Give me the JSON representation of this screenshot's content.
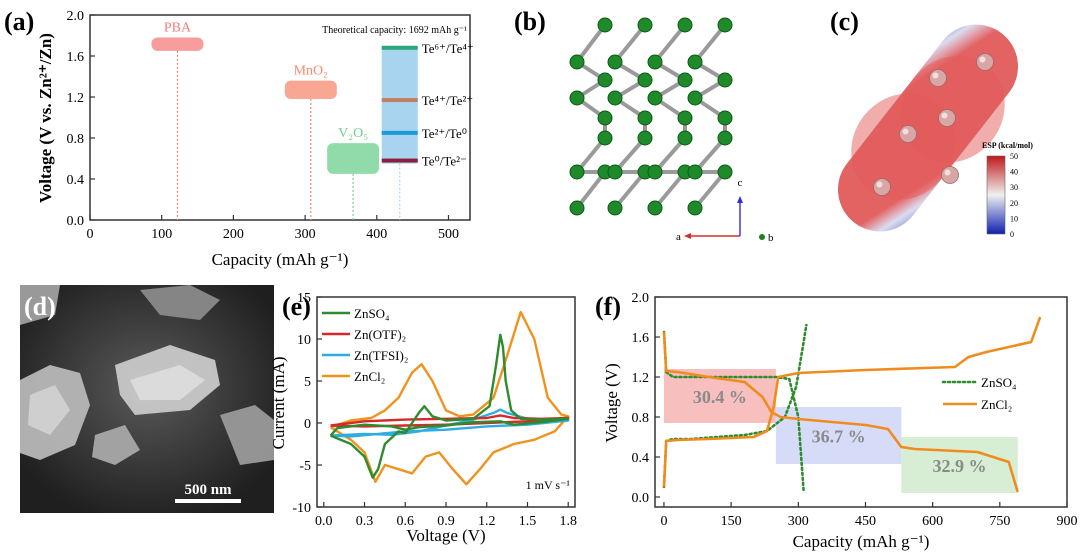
{
  "panel_labels": {
    "a": "(a)",
    "b": "(b)",
    "c": "(c)",
    "d": "(d)",
    "e": "(e)",
    "f": "(f)"
  },
  "panel_b": {
    "axis_labels": {
      "a": "a",
      "b": "b",
      "c": "c"
    }
  },
  "panel_c": {
    "colorbar_title": "ESP (kcal/mol)",
    "colorbar_ticks": [
      "50",
      "40",
      "30",
      "20",
      "10",
      "0"
    ],
    "colors": {
      "positive": "#d23030",
      "negative": "#2030c0",
      "neutral": "#e6e6e6"
    }
  },
  "panel_d": {
    "scale_bar": "500 nm"
  },
  "chart_data": [
    {
      "id": "a",
      "type": "bar",
      "title": "Theoretical capacity: 1692 mAh g⁻¹",
      "xlabel": "Capacity (mAh g⁻¹)",
      "ylabel": "Voltage (V vs. Zn²⁺/Zn)",
      "xlim": [
        0,
        550
      ],
      "ylim": [
        0,
        2.0
      ],
      "xticks": [
        "0",
        "100",
        "200",
        "300",
        "400",
        "500"
      ],
      "yticks": [
        "0.0",
        "0.4",
        "0.8",
        "1.2",
        "1.6",
        "2.0"
      ],
      "materials": [
        {
          "name": "PBA",
          "capacity": 122,
          "voltage_low": 1.65,
          "voltage_high": 1.78,
          "color": "#f47c7c"
        },
        {
          "name": "MnO₂",
          "capacity": 308,
          "voltage_low": 1.18,
          "voltage_high": 1.36,
          "color": "#f58a6e"
        },
        {
          "name": "V₂O₅",
          "capacity": 367,
          "voltage_low": 0.45,
          "voltage_high": 0.75,
          "color": "#6ccf8e"
        },
        {
          "name": "Te",
          "capacity": 432,
          "voltage_low": 0.55,
          "voltage_high": 1.7,
          "color": "#a8d4f0"
        }
      ],
      "redox_levels": [
        {
          "label": "Te⁶⁺/Te⁴⁺",
          "voltage": 1.68,
          "color": "#2aa87a"
        },
        {
          "label": "Te⁴⁺/Te²⁺",
          "voltage": 1.17,
          "color": "#c08060"
        },
        {
          "label": "Te²⁺/Te⁰",
          "voltage": 0.85,
          "color": "#1a9ad6"
        },
        {
          "label": "Te⁰/Te²⁻",
          "voltage": 0.58,
          "color": "#8a2040"
        }
      ]
    },
    {
      "id": "e",
      "type": "line",
      "xlabel": "Voltage (V)",
      "ylabel": "Current (mA)",
      "annotation": "1 mV s⁻¹",
      "xlim": [
        -0.05,
        1.85
      ],
      "ylim": [
        -10,
        15
      ],
      "xticks": [
        "0.0",
        "0.3",
        "0.6",
        "0.9",
        "1.2",
        "1.5",
        "1.8"
      ],
      "yticks": [
        "-10",
        "-5",
        "0",
        "5",
        "10",
        "15"
      ],
      "series": [
        {
          "name": "ZnSO₄",
          "color": "#2e8b2e",
          "x": [
            0.05,
            0.2,
            0.3,
            0.36,
            0.4,
            0.45,
            0.55,
            0.6,
            0.65,
            0.7,
            0.74,
            0.8,
            0.9,
            1.1,
            1.22,
            1.27,
            1.3,
            1.32,
            1.34,
            1.38,
            1.45,
            1.6,
            1.8,
            1.6,
            1.4,
            1.3,
            1.1,
            0.9,
            0.7,
            0.6,
            0.5,
            0.3,
            0.1,
            0.05
          ],
          "y": [
            -1.5,
            -2.5,
            -4,
            -6.5,
            -5.5,
            -2.5,
            -1,
            -1.2,
            0,
            1.2,
            2.0,
            0.8,
            0.3,
            0.5,
            2,
            7,
            10.5,
            9,
            5,
            1.5,
            0.5,
            0.4,
            0.5,
            0.1,
            -0.2,
            0.2,
            0.1,
            -0.3,
            -0.5,
            -0.8,
            -0.4,
            -0.2,
            -0.6,
            -1.5
          ]
        },
        {
          "name": "Zn(OTF)₂",
          "color": "#d42a2a",
          "x": [
            0.05,
            0.3,
            0.6,
            0.9,
            1.2,
            1.3,
            1.4,
            1.6,
            1.8,
            1.5,
            1.2,
            0.9,
            0.6,
            0.3,
            0.05
          ],
          "y": [
            -0.3,
            0.2,
            0.4,
            0.5,
            0.6,
            0.9,
            0.6,
            0.5,
            0.6,
            0.2,
            0.0,
            -0.2,
            -0.3,
            -0.4,
            -0.3
          ]
        },
        {
          "name": "Zn(TFSI)₂",
          "color": "#2eaee0",
          "x": [
            0.05,
            0.3,
            0.5,
            0.7,
            0.9,
            1.1,
            1.25,
            1.3,
            1.35,
            1.5,
            1.8,
            1.5,
            1.2,
            0.9,
            0.6,
            0.4,
            0.2,
            0.05
          ],
          "y": [
            -1.5,
            -1.3,
            -1.4,
            -1.0,
            -0.3,
            0.4,
            1.2,
            1.6,
            1.2,
            0.5,
            0.3,
            -0.2,
            -0.4,
            -0.8,
            -1.0,
            -1.3,
            -1.6,
            -1.5
          ]
        },
        {
          "name": "ZnCl₂",
          "color": "#f0921e",
          "x": [
            0.05,
            0.2,
            0.35,
            0.45,
            0.55,
            0.65,
            0.72,
            0.8,
            0.9,
            1.0,
            1.1,
            1.25,
            1.35,
            1.45,
            1.55,
            1.65,
            1.75,
            1.8,
            1.7,
            1.55,
            1.4,
            1.25,
            1.15,
            1.05,
            0.95,
            0.85,
            0.75,
            0.65,
            0.55,
            0.45,
            0.38,
            0.3,
            0.2,
            0.05
          ],
          "y": [
            -0.5,
            0.3,
            0.6,
            1.5,
            3.0,
            6.0,
            7.0,
            5.0,
            1.5,
            0.8,
            1.0,
            3.0,
            8.0,
            13.2,
            10.0,
            3.0,
            1.0,
            0.8,
            -1.0,
            -2.0,
            -2.5,
            -3.5,
            -5.5,
            -7.3,
            -5.5,
            -3.5,
            -4.0,
            -6.0,
            -5.5,
            -5.0,
            -7.0,
            -3.5,
            -2.0,
            -0.5
          ]
        }
      ]
    },
    {
      "id": "f",
      "type": "line",
      "xlabel": "Capacity (mAh g⁻¹)",
      "ylabel": "Voltage (V)",
      "xlim": [
        -20,
        900
      ],
      "ylim": [
        -0.1,
        2.0
      ],
      "xticks": [
        "0",
        "150",
        "300",
        "450",
        "600",
        "750",
        "900"
      ],
      "yticks": [
        "0.0",
        "0.4",
        "0.8",
        "1.2",
        "1.6",
        "2.0"
      ],
      "regions": [
        {
          "label": "30.4 %",
          "x_start": 0,
          "x_end": 250,
          "y_low": 0.74,
          "y_high": 1.28,
          "color": "#f28b8b"
        },
        {
          "label": "36.7 %",
          "x_start": 250,
          "x_end": 530,
          "y_low": 0.33,
          "y_high": 0.9,
          "color": "#b4bff0"
        },
        {
          "label": "32.9 %",
          "x_start": 530,
          "x_end": 790,
          "y_low": 0.04,
          "y_high": 0.6,
          "color": "#b6e0b0"
        }
      ],
      "series": [
        {
          "name": "ZnSO₄",
          "color": "#2e8b2e",
          "style": "dotted",
          "x": [
            0,
            5,
            20,
            50,
            100,
            150,
            200,
            250,
            280,
            300,
            312,
            0,
            5,
            20,
            60,
            120,
            180,
            230,
            270,
            295,
            310,
            318
          ],
          "y": [
            1.65,
            1.25,
            1.2,
            1.2,
            1.2,
            1.2,
            1.2,
            1.2,
            1.18,
            0.8,
            0.05,
            0.1,
            0.56,
            0.58,
            0.58,
            0.6,
            0.62,
            0.66,
            0.8,
            1.1,
            1.5,
            1.72
          ]
        },
        {
          "name": "ZnCl₂",
          "color": "#f08c1e",
          "style": "solid",
          "x": [
            0,
            5,
            30,
            100,
            180,
            220,
            240,
            260,
            300,
            450,
            500,
            530,
            560,
            700,
            770,
            790,
            0,
            5,
            30,
            100,
            200,
            230,
            245,
            255,
            300,
            450,
            650,
            680,
            720,
            820,
            840
          ],
          "y": [
            1.65,
            1.26,
            1.25,
            1.2,
            1.15,
            1.0,
            0.85,
            0.8,
            0.78,
            0.72,
            0.68,
            0.5,
            0.48,
            0.45,
            0.35,
            0.05,
            0.1,
            0.56,
            0.57,
            0.58,
            0.6,
            0.66,
            0.9,
            1.2,
            1.24,
            1.27,
            1.3,
            1.4,
            1.45,
            1.55,
            1.8
          ]
        }
      ]
    }
  ]
}
